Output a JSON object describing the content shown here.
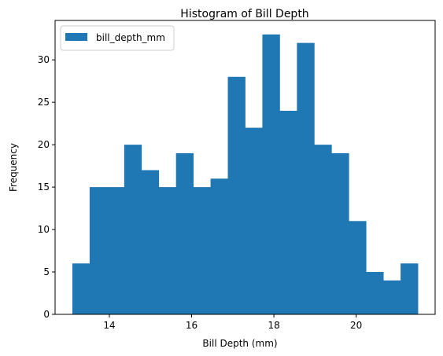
{
  "chart_data": {
    "type": "bar",
    "title": "Histogram of Bill Depth",
    "xlabel": "Bill Depth (mm)",
    "ylabel": "Frequency",
    "bin_edges": [
      13.1,
      13.52,
      13.94,
      14.36,
      14.78,
      15.2,
      15.62,
      16.04,
      16.46,
      16.88,
      17.3,
      17.72,
      18.14,
      18.56,
      18.98,
      19.4,
      19.82,
      20.24,
      20.66,
      21.08,
      21.5
    ],
    "values": [
      6,
      15,
      15,
      20,
      17,
      15,
      19,
      15,
      16,
      28,
      22,
      33,
      24,
      32,
      20,
      19,
      11,
      5,
      4,
      6
    ],
    "series": [
      {
        "name": "bill_depth_mm",
        "color": "#1f77b4"
      }
    ],
    "xlim": [
      12.68,
      21.92
    ],
    "ylim": [
      0,
      34.65
    ],
    "xticks": [
      14,
      16,
      18,
      20
    ],
    "yticks": [
      0,
      5,
      10,
      15,
      20,
      25,
      30
    ],
    "legend_position": "upper-left",
    "grid": false
  }
}
